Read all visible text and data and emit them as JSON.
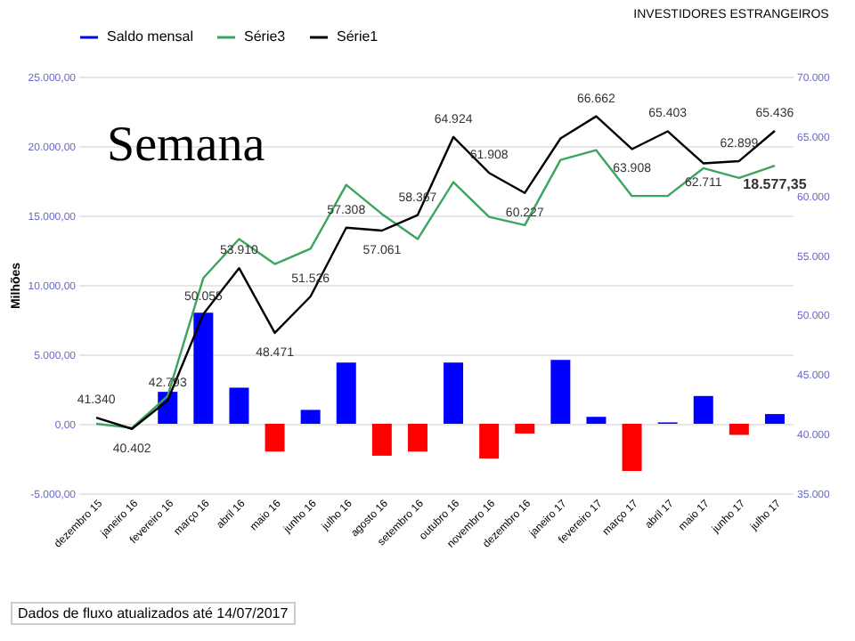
{
  "chart_data": {
    "type": "bar",
    "title": "INVESTIDORES ESTRANGEIROS",
    "ylabel": "Milhões",
    "annotations": [
      "Semana",
      "Dados de fluxo atualizados até 14/07/2017"
    ],
    "categories": [
      "dezembro 15",
      "janeiro 16",
      "fevereiro 16",
      "março 16",
      "abril 16",
      "maio 16",
      "junho 16",
      "julho 16",
      "agosto 16",
      "setembro 16",
      "outubro 16",
      "novembro 16",
      "dezembro 16",
      "janeiro 17",
      "fevereiro 17",
      "março 17",
      "abril 17",
      "maio 17",
      "junho 17",
      "julho 17"
    ],
    "series": [
      {
        "name": "Saldo mensal",
        "color": "#0000ff",
        "colors": [
          null,
          null,
          "#0000ff",
          "#0000ff",
          "#0000ff",
          "#ff0000",
          "#0000ff",
          "#0000ff",
          "#ff0000",
          "#ff0000",
          "#0000ff",
          "#ff0000",
          "#ff0000",
          "#0000ff",
          "#0000ff",
          "#ff0000",
          "#0000ff",
          "#0000ff",
          "#ff0000",
          "#0000ff"
        ],
        "values": [
          null,
          null,
          2300,
          8000,
          2600,
          -2000,
          1000,
          4400,
          -2300,
          -2000,
          4400,
          -2500,
          -700,
          4600,
          500,
          -3400,
          100,
          2000,
          -800,
          700
        ]
      },
      {
        "name": "Série3",
        "type": "line",
        "color": "#3aa55d",
        "values": [
          0,
          -300,
          2000,
          10500,
          13300,
          11500,
          12600,
          17200,
          15100,
          13300,
          17400,
          14900,
          14300,
          19000,
          19700,
          16400,
          16400,
          18400,
          17700,
          18577.35
        ],
        "value_labels": [
          null,
          null,
          null,
          null,
          null,
          null,
          null,
          null,
          null,
          null,
          null,
          null,
          null,
          null,
          null,
          null,
          null,
          null,
          null,
          "18.577,35"
        ]
      },
      {
        "name": "Série1",
        "type": "line",
        "axis": "y2",
        "color": "#000000",
        "values": [
          41340,
          40402,
          42793,
          50055,
          53910,
          48471,
          51526,
          57308,
          57061,
          58367,
          64924,
          61908,
          60227,
          64800,
          66662,
          63908,
          65403,
          62711,
          62899,
          65436
        ],
        "value_labels": [
          "41.340",
          "40.402",
          "42.793",
          "50.055",
          "53.910",
          "48.471",
          "51.526",
          "57.308",
          "57.061",
          "58.367",
          "64.924",
          "61.908",
          "60.227",
          null,
          "66.662",
          "63.908",
          "65.403",
          "62.711",
          "62.899",
          "65.436"
        ]
      }
    ],
    "ylim": [
      -5000,
      25000
    ],
    "yticks": [
      {
        "value": -5000,
        "label": "-5.000,00"
      },
      {
        "value": 0,
        "label": "0,00"
      },
      {
        "value": 5000,
        "label": "5.000,00"
      },
      {
        "value": 10000,
        "label": "10.000,00"
      },
      {
        "value": 15000,
        "label": "15.000,00"
      },
      {
        "value": 20000,
        "label": "20.000,00"
      },
      {
        "value": 25000,
        "label": "25.000,00"
      }
    ],
    "y2lim": [
      35000,
      70000
    ],
    "y2ticks": [
      {
        "value": 35000,
        "label": "35.000"
      },
      {
        "value": 40000,
        "label": "40.000"
      },
      {
        "value": 45000,
        "label": "45.000"
      },
      {
        "value": 50000,
        "label": "50.000"
      },
      {
        "value": 55000,
        "label": "55.000"
      },
      {
        "value": 60000,
        "label": "60.000"
      },
      {
        "value": 65000,
        "label": "65.000"
      },
      {
        "value": 70000,
        "label": "70.000"
      }
    ],
    "grid": "y",
    "legend": "top"
  }
}
